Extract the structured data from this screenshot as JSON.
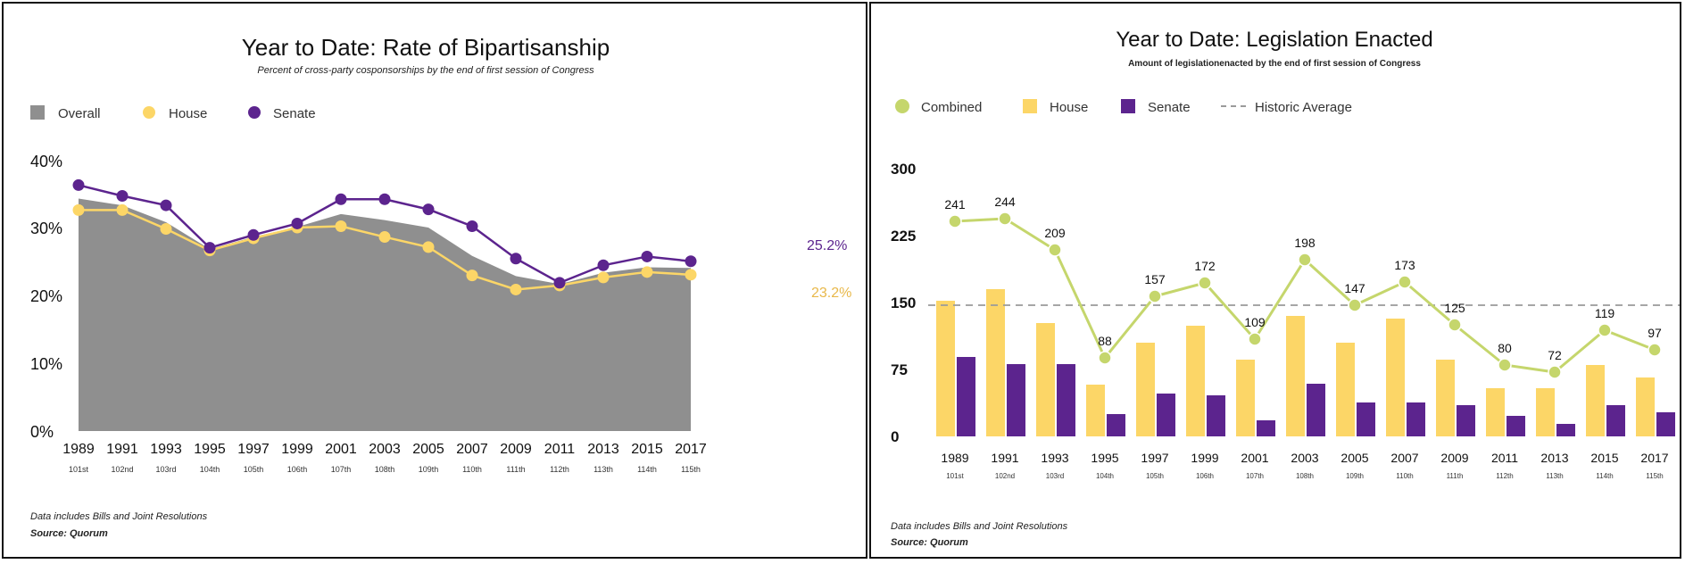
{
  "colors": {
    "overall": "#8f8f8f",
    "house": "#fcd667",
    "senate": "#5c248e",
    "combined": "#c5d66c",
    "historic": "#9a9a9a"
  },
  "chart_data": [
    {
      "type": "area",
      "title": "Year to Date: Rate of Bipartisanship",
      "subtitle": "Percent of cross-party cosponsorships by the end of first session of Congress",
      "categories": [
        "1989",
        "1991",
        "1993",
        "1995",
        "1997",
        "1999",
        "2001",
        "2003",
        "2005",
        "2007",
        "2009",
        "2011",
        "2013",
        "2015",
        "2017"
      ],
      "congress": [
        "101st",
        "102nd",
        "103rd",
        "104th",
        "105th",
        "106th",
        "107th",
        "108th",
        "109th",
        "110th",
        "111th",
        "112th",
        "113th",
        "114th",
        "115th"
      ],
      "yticks": [
        "0%",
        "10%",
        "20%",
        "30%",
        "40%"
      ],
      "ylim": [
        0,
        40
      ],
      "legend": [
        "Overall",
        "House",
        "Senate"
      ],
      "series": [
        {
          "name": "Overall",
          "type": "area",
          "values": [
            34.5,
            33.5,
            31,
            27,
            28.8,
            30.3,
            32.2,
            31.3,
            30.2,
            26,
            23,
            21.8,
            23.5,
            24.3,
            24.2
          ]
        },
        {
          "name": "House",
          "type": "line",
          "values": [
            32.8,
            32.8,
            30,
            26.8,
            28.6,
            30.2,
            30.4,
            28.8,
            27.3,
            23.1,
            21,
            21.6,
            22.8,
            23.6,
            23.2
          ]
        },
        {
          "name": "Senate",
          "type": "line",
          "values": [
            36.5,
            34.9,
            33.5,
            27.2,
            29.1,
            30.8,
            34.4,
            34.4,
            32.9,
            30.4,
            25.6,
            22,
            24.6,
            25.9,
            25.2
          ]
        }
      ],
      "end_labels": {
        "senate": "25.2%",
        "house": "23.2%"
      },
      "footnote": "Data includes Bills and Joint Resolutions",
      "source": "Source: Quorum"
    },
    {
      "type": "bar",
      "title": "Year to Date: Legislation Enacted",
      "subtitle": "Amount of legislationenacted by the end of first session of Congress",
      "categories": [
        "1989",
        "1991",
        "1993",
        "1995",
        "1997",
        "1999",
        "2001",
        "2003",
        "2005",
        "2007",
        "2009",
        "2011",
        "2013",
        "2015",
        "2017"
      ],
      "congress": [
        "101st",
        "102nd",
        "103rd",
        "104th",
        "105th",
        "106th",
        "107th",
        "108th",
        "109th",
        "110th",
        "111th",
        "112th",
        "113th",
        "114th",
        "115th"
      ],
      "yticks": [
        "0",
        "75",
        "150",
        "225",
        "300"
      ],
      "ylim": [
        0,
        300
      ],
      "legend": [
        "Combined",
        "House",
        "Senate",
        "Historic Average"
      ],
      "historic_average": 147,
      "series": [
        {
          "name": "Combined",
          "type": "line",
          "values": [
            241,
            244,
            209,
            88,
            157,
            172,
            109,
            198,
            147,
            173,
            125,
            80,
            72,
            119,
            97
          ]
        },
        {
          "name": "House",
          "type": "bar",
          "values": [
            152,
            165,
            127,
            58,
            105,
            124,
            86,
            135,
            105,
            132,
            86,
            54,
            54,
            80,
            66
          ]
        },
        {
          "name": "Senate",
          "type": "bar",
          "values": [
            89,
            81,
            81,
            25,
            48,
            46,
            18,
            59,
            38,
            38,
            35,
            23,
            14,
            35,
            27
          ]
        }
      ],
      "point_labels": [
        "241",
        "244",
        "209",
        "88",
        "157",
        "172",
        "109",
        "198",
        "147",
        "173",
        "125",
        "80",
        "72",
        "119",
        "97"
      ],
      "footnote": "Data includes Bills and Joint Resolutions",
      "source": "Source: Quorum"
    }
  ]
}
